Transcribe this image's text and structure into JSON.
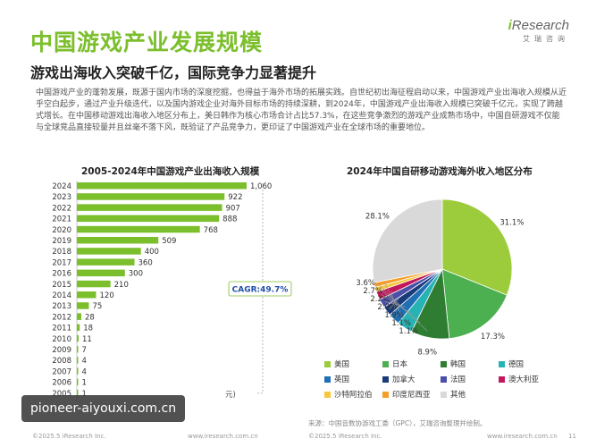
{
  "header": {
    "title": "中国游戏产业发展规模",
    "brand_name": "Research",
    "brand_mark": "i",
    "brand_sub": "艾瑞咨询"
  },
  "subtitle": "游戏出海收入突破千亿，国际竞争力显著提升",
  "intro": "中国游戏产业的蓬勃发展，既源于国内市场的深度挖掘，也得益于海外市场的拓展实践。自世纪初出海征程启动以来，中国游戏产业出海收入规模从近乎空白起步，通过产业升级迭代，以及国内游戏企业对海外目标市场的持续深耕，到2024年，中国游戏产业出海收入规模已突破千亿元，实现了跨越式增长。在中国移动游戏出海收入地区分布上，美日韩作为核心市场合计占比57.3%，在这些竞争激烈的游戏产业成熟市场中，中国自研游戏不仅能与全球竞品直接较量并且丝毫不落下风，既验证了产品竞争力，更印证了中国游戏产业在全球市场的重要地位。",
  "chart_data": [
    {
      "type": "bar",
      "orientation": "horizontal",
      "title": "2005-2024年中国游戏产业出海收入规模",
      "categories": [
        "2024",
        "2023",
        "2022",
        "2021",
        "2020",
        "2019",
        "2018",
        "2017",
        "2016",
        "2015",
        "2014",
        "2013",
        "2012",
        "2011",
        "2010",
        "2009",
        "2008",
        "2007",
        "2006",
        "2005"
      ],
      "values": [
        1060,
        922,
        907,
        888,
        768,
        509,
        400,
        360,
        300,
        210,
        120,
        75,
        28,
        18,
        11,
        7,
        4,
        4,
        1,
        1
      ],
      "value_labels": [
        "1,060",
        "922",
        "907",
        "888",
        "768",
        "509",
        "400",
        "360",
        "300",
        "210",
        "120",
        "75",
        "28",
        "18",
        "11",
        "7",
        "4",
        "4",
        "1",
        "1"
      ],
      "cagr_label": "CAGR:49.7%",
      "xlim": [
        0,
        1060
      ],
      "color": "#7cbf2d",
      "visible_unit_fragment": "元)"
    },
    {
      "type": "pie",
      "title": "2024年中国自研移动游戏海外收入地区分布",
      "slices": [
        {
          "name": "美国",
          "value": 31.1,
          "label": "31.1%",
          "color": "#9ccc3c"
        },
        {
          "name": "日本",
          "value": 17.3,
          "label": "17.3%",
          "color": "#4caf50"
        },
        {
          "name": "韩国",
          "value": 8.9,
          "label": "8.9%",
          "color": "#2e7d32"
        },
        {
          "name": "德国",
          "value": 3.6,
          "label": "3.6%",
          "color": "#26b3b3"
        },
        {
          "name": "英国",
          "value": 2.7,
          "label": "2.7%",
          "color": "#1f6fb5"
        },
        {
          "name": "加拿大",
          "value": 2.2,
          "label": "2.2%",
          "color": "#1a3b7a"
        },
        {
          "name": "法国",
          "value": 2.0,
          "label": "2.0%",
          "color": "#4a4fa8"
        },
        {
          "name": "澳大利亚",
          "value": 1.9,
          "label": "1.9%",
          "color": "#c2185b"
        },
        {
          "name": "沙特阿拉伯",
          "value": 1.1,
          "label": "1.1%",
          "color": "#f7c83d"
        },
        {
          "name": "印度尼西亚",
          "value": 1.1,
          "label": "1.1%",
          "color": "#f59d2a"
        },
        {
          "name": "其他",
          "value": 28.1,
          "label": "28.1%",
          "color": "#d9d9d9"
        }
      ],
      "legend_position": "bottom"
    }
  ],
  "source": "来源：中国音数协游戏工委（GPC），艾瑞咨询整理并绘制。",
  "watermark": "pioneer-aiyouxi.com.cn",
  "footer": {
    "copyright_left": "©2025.5 iResearch Inc.",
    "url_left": "www.iresearch.com.cn",
    "copyright_right": "©2025.5 iResearch Inc.",
    "url_right": "www.iresearch.com.cn",
    "page": "11"
  }
}
